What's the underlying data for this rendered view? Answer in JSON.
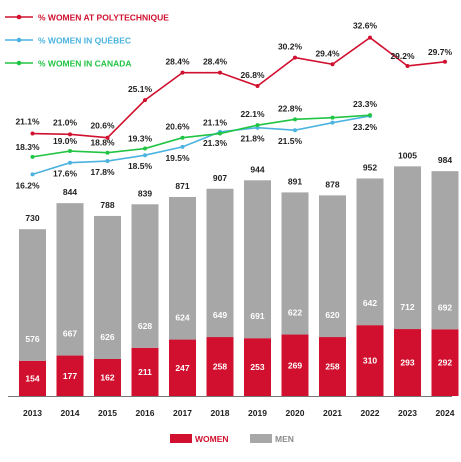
{
  "chart_data": {
    "type": "bar",
    "stacked": true,
    "categories": [
      "2013",
      "2014",
      "2015",
      "2016",
      "2017",
      "2018",
      "2019",
      "2020",
      "2021",
      "2022",
      "2023",
      "2024"
    ],
    "bar_series": [
      {
        "name": "WOMEN",
        "color": "#d0102e",
        "values": [
          154,
          177,
          162,
          211,
          247,
          258,
          253,
          269,
          258,
          310,
          293,
          292
        ]
      },
      {
        "name": "MEN",
        "color": "#a7a7a7",
        "values": [
          576,
          667,
          626,
          628,
          624,
          649,
          691,
          622,
          620,
          642,
          712,
          692
        ]
      }
    ],
    "totals": [
      730,
      844,
      788,
      839,
      871,
      907,
      944,
      891,
      878,
      952,
      1005,
      984
    ],
    "line_series": [
      {
        "name": "% WOMEN AT POLYTECHNIQUE",
        "color": "#d0102e",
        "labels": [
          "21.1%",
          "21.0%",
          "20.6%",
          "25.1%",
          "28.4%",
          "28.4%",
          "26.8%",
          "30.2%",
          "29.4%",
          "32.6%",
          "29.2%",
          "29.7%"
        ],
        "values": [
          21.1,
          21.0,
          20.6,
          25.1,
          28.4,
          28.4,
          26.8,
          30.2,
          29.4,
          32.6,
          29.2,
          29.7
        ]
      },
      {
        "name": "% WOMEN IN QUÉBEC",
        "color": "#4bb3e0",
        "labels": [
          "16.2%",
          "17.6%",
          "17.8%",
          "18.5%",
          "19.5%",
          "21.3%",
          "21.8%",
          "21.5%",
          "",
          "23.2%"
        ],
        "values": [
          16.2,
          17.6,
          17.8,
          18.5,
          19.5,
          21.3,
          21.8,
          21.5,
          22.4,
          23.2
        ]
      },
      {
        "name": "% WOMEN IN CANADA",
        "color": "#22c444",
        "labels": [
          "18.3%",
          "19.0%",
          "18.8%",
          "19.3%",
          "20.6%",
          "21.1%",
          "22.1%",
          "22.8%",
          "",
          "23.3%"
        ],
        "values": [
          18.3,
          19.0,
          18.8,
          19.3,
          20.6,
          21.1,
          22.1,
          22.8,
          23.0,
          23.3
        ]
      }
    ],
    "legend": {
      "lines_position": "top-left",
      "bars_position": "bottom-center"
    },
    "grid": false
  }
}
